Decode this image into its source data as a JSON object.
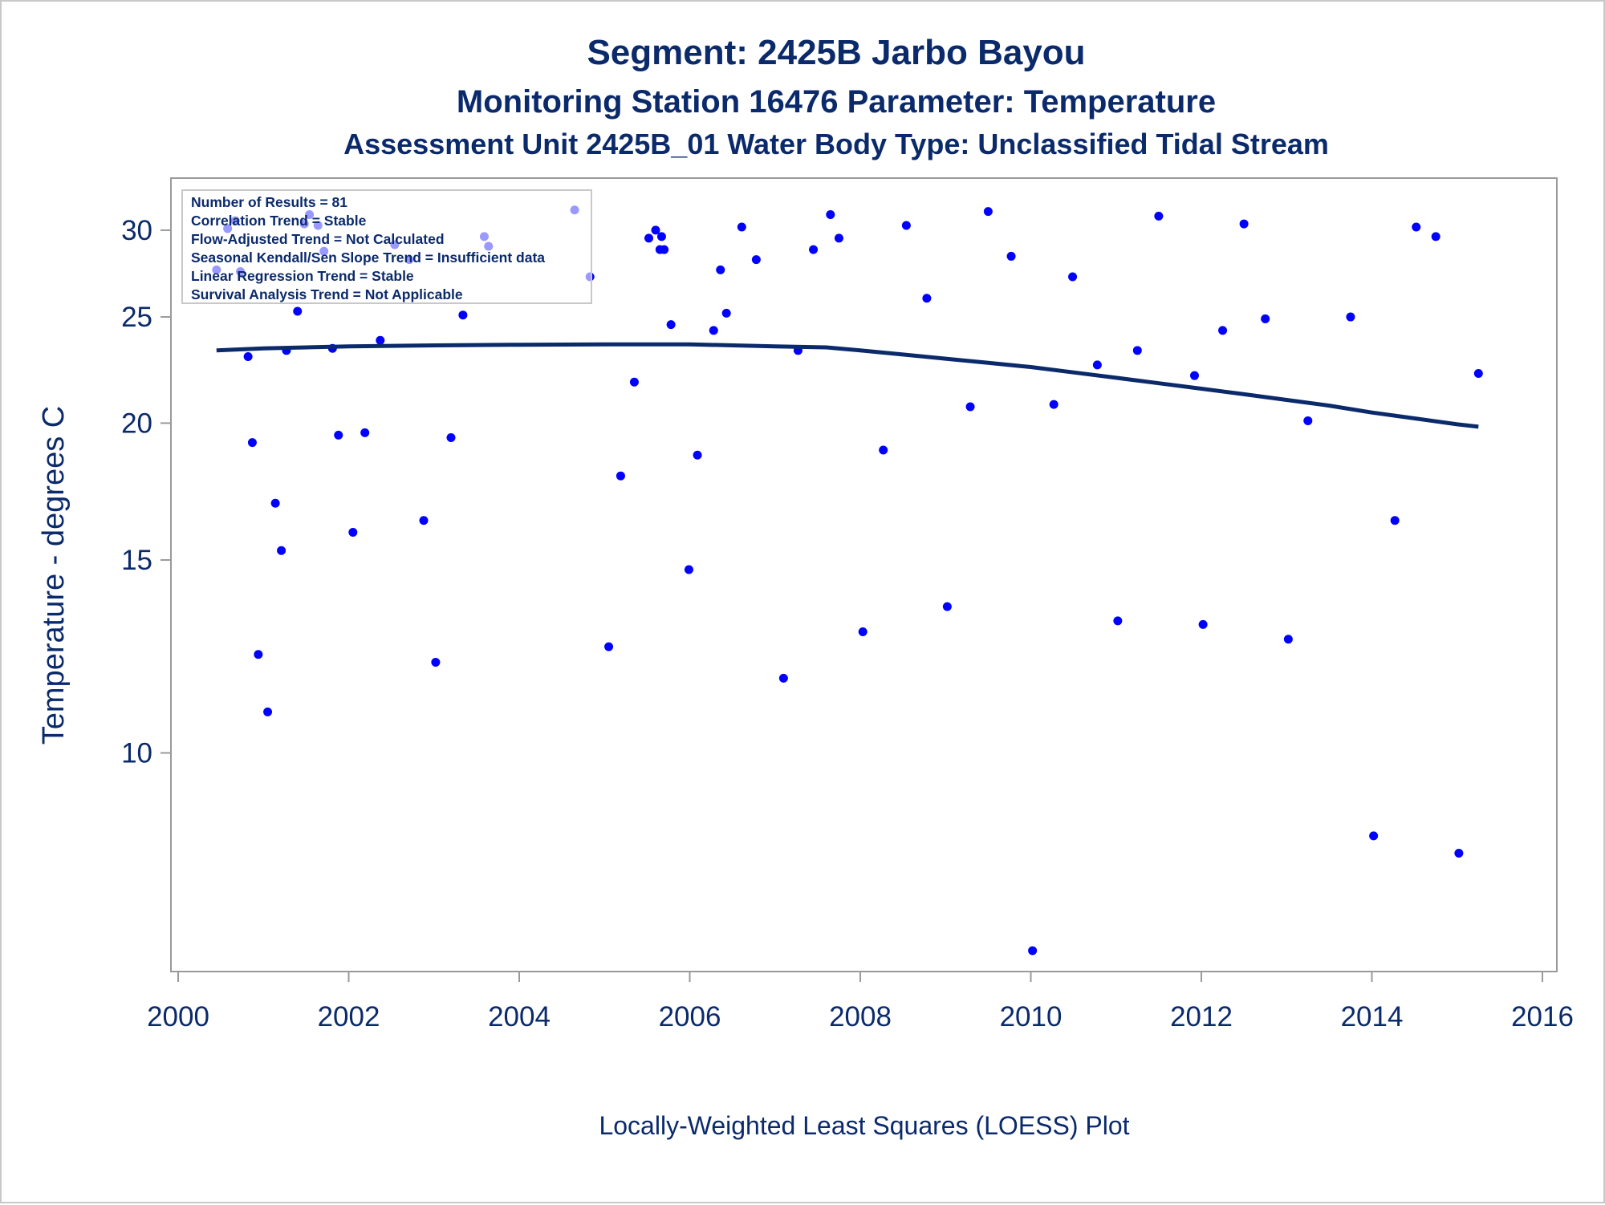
{
  "colors": {
    "text": "#0b2a6b",
    "points": "#0000ff",
    "loess_line": "#0b2a6b",
    "axis": "#9a9a9a"
  },
  "chart_data": {
    "type": "scatter",
    "title": "Segment: 2425B  Jarbo Bayou",
    "subtitle": "Monitoring Station 16476 Parameter: Temperature",
    "subtitle2": "Assessment Unit 2425B_01   Water Body Type: Unclassified Tidal Stream",
    "xlabel": "",
    "ylabel": "Temperature - degrees C",
    "footer": "Locally-Weighted Least Squares (LOESS) Plot",
    "yscale": "log",
    "xlim": [
      2000,
      2016
    ],
    "ylim": [
      6.5,
      32.8
    ],
    "xticks": [
      2000,
      2002,
      2004,
      2006,
      2008,
      2010,
      2012,
      2014,
      2016
    ],
    "yticks": [
      10,
      15,
      20,
      25,
      30
    ],
    "grid": false,
    "legend_placement": "top-left",
    "info_box": [
      "Number of Results = 81",
      "Correlation Trend = Stable",
      "Flow-Adjusted Trend = Not Calculated",
      "Seasonal Kendall/Sen Slope Trend = Insufficient data",
      "Linear Regression Trend = Stable",
      "Survival Analysis Trend = Not Applicable"
    ],
    "points": [
      [
        2000.45,
        27.6
      ],
      [
        2000.58,
        30.1
      ],
      [
        2000.67,
        30.6
      ],
      [
        2000.73,
        27.5
      ],
      [
        2000.82,
        23.0
      ],
      [
        2000.87,
        19.2
      ],
      [
        2000.94,
        12.3
      ],
      [
        2001.05,
        10.9
      ],
      [
        2001.14,
        16.9
      ],
      [
        2001.21,
        15.3
      ],
      [
        2001.27,
        23.3
      ],
      [
        2001.4,
        25.3
      ],
      [
        2001.48,
        30.4
      ],
      [
        2001.54,
        31.0
      ],
      [
        2001.64,
        30.3
      ],
      [
        2001.71,
        28.7
      ],
      [
        2001.81,
        23.4
      ],
      [
        2001.88,
        19.5
      ],
      [
        2002.05,
        15.9
      ],
      [
        2002.19,
        19.6
      ],
      [
        2002.37,
        23.8
      ],
      [
        2002.54,
        29.1
      ],
      [
        2002.71,
        28.2
      ],
      [
        2002.88,
        16.3
      ],
      [
        2003.02,
        12.1
      ],
      [
        2003.2,
        19.4
      ],
      [
        2003.34,
        25.1
      ],
      [
        2003.59,
        29.6
      ],
      [
        2003.64,
        29.0
      ],
      [
        2004.65,
        31.3
      ],
      [
        2004.83,
        27.2
      ],
      [
        2005.05,
        12.5
      ],
      [
        2005.19,
        17.9
      ],
      [
        2005.35,
        21.8
      ],
      [
        2005.52,
        29.5
      ],
      [
        2005.6,
        30.0
      ],
      [
        2005.65,
        28.8
      ],
      [
        2005.67,
        29.6
      ],
      [
        2005.7,
        28.8
      ],
      [
        2005.78,
        24.6
      ],
      [
        2005.99,
        14.7
      ],
      [
        2006.09,
        18.7
      ],
      [
        2006.28,
        24.3
      ],
      [
        2006.36,
        27.6
      ],
      [
        2006.43,
        25.2
      ],
      [
        2006.61,
        30.2
      ],
      [
        2006.78,
        28.2
      ],
      [
        2007.1,
        11.7
      ],
      [
        2007.27,
        23.3
      ],
      [
        2007.45,
        28.8
      ],
      [
        2007.65,
        31.0
      ],
      [
        2007.75,
        29.5
      ],
      [
        2008.03,
        12.9
      ],
      [
        2008.27,
        18.9
      ],
      [
        2008.54,
        30.3
      ],
      [
        2008.78,
        26.0
      ],
      [
        2009.02,
        13.6
      ],
      [
        2009.29,
        20.7
      ],
      [
        2009.5,
        31.2
      ],
      [
        2009.77,
        28.4
      ],
      [
        2010.02,
        6.6
      ],
      [
        2010.27,
        20.8
      ],
      [
        2010.49,
        27.2
      ],
      [
        2010.78,
        22.6
      ],
      [
        2011.02,
        13.2
      ],
      [
        2011.25,
        23.3
      ],
      [
        2011.5,
        30.9
      ],
      [
        2011.92,
        22.1
      ],
      [
        2012.02,
        13.1
      ],
      [
        2012.25,
        24.3
      ],
      [
        2012.5,
        30.4
      ],
      [
        2012.75,
        24.9
      ],
      [
        2013.02,
        12.7
      ],
      [
        2013.25,
        20.1
      ],
      [
        2013.75,
        25.0
      ],
      [
        2014.02,
        8.4
      ],
      [
        2014.27,
        16.3
      ],
      [
        2014.52,
        30.2
      ],
      [
        2014.75,
        29.6
      ],
      [
        2015.02,
        8.1
      ],
      [
        2015.25,
        22.2
      ]
    ],
    "loess": [
      [
        2000.45,
        23.3
      ],
      [
        2001.0,
        23.4
      ],
      [
        2002.0,
        23.5
      ],
      [
        2003.0,
        23.55
      ],
      [
        2004.0,
        23.58
      ],
      [
        2005.0,
        23.6
      ],
      [
        2006.0,
        23.6
      ],
      [
        2007.0,
        23.5
      ],
      [
        2007.6,
        23.45
      ],
      [
        2008.0,
        23.3
      ],
      [
        2008.5,
        23.1
      ],
      [
        2009.0,
        22.9
      ],
      [
        2009.5,
        22.7
      ],
      [
        2010.0,
        22.5
      ],
      [
        2010.5,
        22.25
      ],
      [
        2011.0,
        22.0
      ],
      [
        2011.5,
        21.75
      ],
      [
        2012.0,
        21.5
      ],
      [
        2012.5,
        21.25
      ],
      [
        2013.0,
        21.0
      ],
      [
        2013.5,
        20.75
      ],
      [
        2014.0,
        20.45
      ],
      [
        2014.5,
        20.2
      ],
      [
        2015.0,
        19.95
      ],
      [
        2015.25,
        19.85
      ]
    ]
  }
}
